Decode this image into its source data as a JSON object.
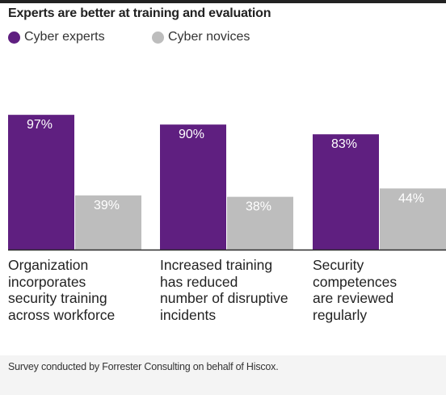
{
  "title": "Experts are better at training and evaluation",
  "legend": [
    {
      "label": "Cyber experts",
      "color": "#5f1f80"
    },
    {
      "label": "Cyber novices",
      "color": "#bdbdbd"
    }
  ],
  "footnote": "Survey conducted by Forrester Consulting on behalf of Hiscox.",
  "chart_data": {
    "type": "bar",
    "categories": [
      "Organization incorporates security training across workforce",
      "Increased training has reduced number of disruptive incidents",
      "Security competences are reviewed regularly"
    ],
    "category_lines": [
      [
        "Organization",
        "incorporates",
        "security training",
        "across workforce"
      ],
      [
        "Increased training",
        "has reduced",
        "number of disruptive",
        "incidents"
      ],
      [
        "Security",
        "competences",
        "are reviewed",
        "regularly"
      ]
    ],
    "series": [
      {
        "name": "Cyber experts",
        "values": [
          97,
          90,
          83
        ],
        "labels": [
          "97%",
          "90%",
          "83%"
        ],
        "color": "#5f1f80"
      },
      {
        "name": "Cyber novices",
        "values": [
          39,
          38,
          44
        ],
        "labels": [
          "39%",
          "38%",
          "44%"
        ],
        "color": "#bdbdbd"
      }
    ],
    "ylim": [
      0,
      100
    ],
    "grid": false,
    "legend_position": "top-left",
    "value_labels": "inside-top"
  }
}
